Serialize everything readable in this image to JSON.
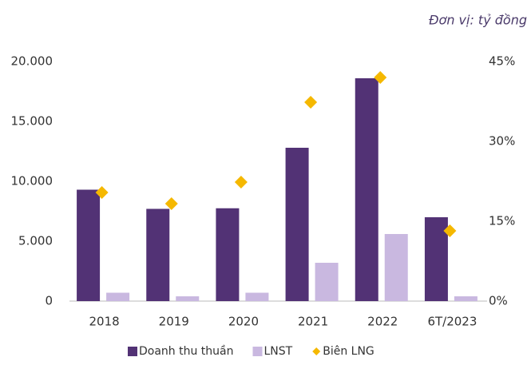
{
  "chart_data": {
    "type": "bar_line",
    "annotation": "Đơn vị: tỷ đồng",
    "categories": [
      "2018",
      "2019",
      "2020",
      "2021",
      "2022",
      "6T/2023"
    ],
    "series": [
      {
        "name": "Doanh thu thuần",
        "color": "#523275",
        "type": "bar",
        "values": [
          9300,
          7700,
          7750,
          12800,
          18600,
          7000
        ]
      },
      {
        "name": "LNST",
        "color": "#c9b8e0",
        "type": "bar",
        "values": [
          700,
          400,
          700,
          3200,
          5600,
          400
        ]
      },
      {
        "name": "Biên LNG",
        "color": "#f5b800",
        "type": "marker",
        "axis": "y2",
        "values": [
          20.4,
          18.3,
          22.35,
          37.35,
          42,
          13.2
        ]
      }
    ],
    "ylim": [
      0,
      20000
    ],
    "yticks": [
      0,
      {
        "value": 5000,
        "label": "5.000"
      },
      {
        "value": 10000,
        "label": "10.000"
      },
      {
        "value": 15000,
        "label": "15.000"
      },
      {
        "value": 20000,
        "label": "20.000"
      }
    ],
    "y2lim": [
      0,
      45
    ],
    "y2ticks": [
      {
        "value": 0,
        "label": "0%"
      },
      {
        "value": 15,
        "label": "15%"
      },
      {
        "value": 30,
        "label": "30%"
      },
      {
        "value": 45,
        "label": "45%"
      }
    ],
    "legend": "bottom"
  }
}
